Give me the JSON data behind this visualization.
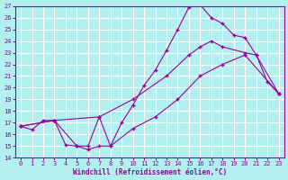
{
  "background_color": "#b2f0f0",
  "grid_color": "#ffffff",
  "line_color": "#990099",
  "marker": "+",
  "xlabel": "Windchill (Refroidissement éolien,°C)",
  "xlim": [
    -0.5,
    23.5
  ],
  "ylim": [
    14,
    27
  ],
  "xticks": [
    0,
    1,
    2,
    3,
    4,
    5,
    6,
    7,
    8,
    9,
    10,
    11,
    12,
    13,
    14,
    15,
    16,
    17,
    18,
    19,
    20,
    21,
    22,
    23
  ],
  "yticks": [
    14,
    15,
    16,
    17,
    18,
    19,
    20,
    21,
    22,
    23,
    24,
    25,
    26,
    27
  ],
  "curve1_x": [
    0,
    1,
    2,
    3,
    4,
    5,
    6,
    7,
    8,
    9,
    10,
    11,
    12,
    13,
    14,
    15,
    16,
    17,
    18,
    19,
    20,
    21,
    22,
    23
  ],
  "curve1_y": [
    16.7,
    16.4,
    17.2,
    17.2,
    15.1,
    15.0,
    15.0,
    17.5,
    15.0,
    17.0,
    18.5,
    20.2,
    21.5,
    23.2,
    25.0,
    26.9,
    27.1,
    26.0,
    25.5,
    24.5,
    24.3,
    22.8,
    20.5,
    19.5
  ],
  "curve2_x": [
    0,
    3,
    7,
    10,
    13,
    15,
    16,
    17,
    18,
    20,
    21,
    23
  ],
  "curve2_y": [
    16.7,
    17.2,
    17.5,
    19.0,
    21.0,
    22.8,
    23.5,
    24.0,
    23.5,
    23.0,
    22.8,
    19.5
  ],
  "curve3_x": [
    0,
    3,
    5,
    6,
    7,
    8,
    10,
    12,
    14,
    16,
    18,
    20,
    23
  ],
  "curve3_y": [
    16.7,
    17.2,
    15.0,
    14.7,
    15.0,
    15.0,
    16.5,
    17.5,
    19.0,
    21.0,
    22.0,
    22.8,
    19.5
  ]
}
